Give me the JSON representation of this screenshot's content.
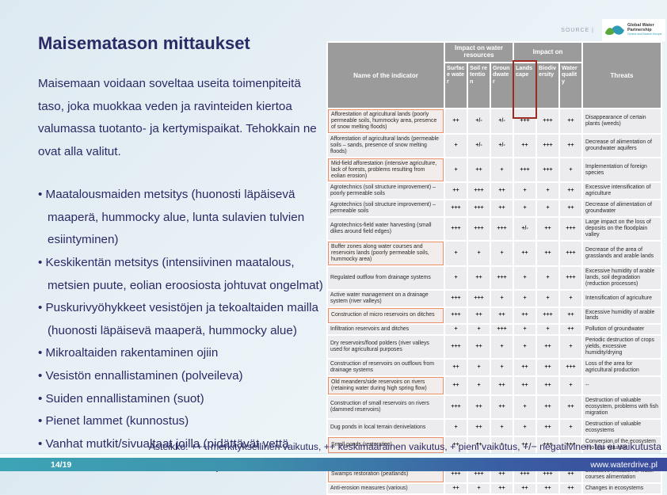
{
  "source_label": "SOURCE |",
  "logo": {
    "line1": "Global Water",
    "line2": "Partnership",
    "line3": "Central and Eastern Europe"
  },
  "title": "Maisematason mittaukset",
  "intro": "Maisemaan voidaan soveltaa useita toimenpiteitä taso, joka muokkaa veden ja ravinteiden kiertoa valumassa tuotanto- ja kertymispaikat. Tehokkain ne ovat alla valitut.",
  "bullets": [
    "Maatalousmaiden metsitys (huonosti läpäisevä maaperä, hummocky alue, lunta sulavien tulvien esiintyminen)",
    "Keskikentän metsitys (intensiivinen maatalous, metsien puute, eolian eroosiosta johtuvat ongelmat)",
    "Puskurivyöhykkeet vesistöjen ja tekoaltaiden mailla (huonosti läpäisevä maaperä, hummocky alue)",
    "Mikroaltaiden rakentaminen ojiin",
    "Vesistön ennallistaminen (polveileva)",
    "Suiden ennallistaminen (suot)",
    "Pienet lammet (kunnostus)",
    "Vanhat mutkit/sivualtaat joilla (pidättävät vettä korkean kevätvirtauksen aikana)"
  ],
  "table": {
    "header": {
      "name_col": "Name of the indicator",
      "group1": "Impact on water resources",
      "group2": "Impact on",
      "subcols": [
        "Surface water",
        "Soil retention",
        "Groundwater",
        "Landscape",
        "Biodiversity",
        "Water quality"
      ],
      "threats_col": "Threats"
    },
    "rows": [
      {
        "name": "Afforestation of agricultural lands (poorly permeable soils, hummocky area, presence of snow melting floods)",
        "highlight": true,
        "values": [
          "++",
          "+/-",
          "+/-",
          "+++",
          "+++",
          "++"
        ],
        "threat": "Disappearance of certain plants (weeds)"
      },
      {
        "name": "Afforestation of agricultural lands (permeable soils – sands, presence of snow melting floods)",
        "highlight": false,
        "values": [
          "+",
          "+/-",
          "+/-",
          "++",
          "+++",
          "++"
        ],
        "threat": "Decrease of alimentation of groundwater aquifers"
      },
      {
        "name": "Mid-field afforestation (intensive agriculture, lack of forests, problems resulting from eolian erosion)",
        "highlight": true,
        "values": [
          "+",
          "++",
          "+",
          "+++",
          "+++",
          "+"
        ],
        "threat": "Implementation of foreign species"
      },
      {
        "name": "Agrotechnics (soil structure improvement) – poorly permeable soils",
        "highlight": false,
        "values": [
          "++",
          "+++",
          "++",
          "+",
          "+",
          "++"
        ],
        "threat": "Excessive intensification of agriculture"
      },
      {
        "name": "Agrotechnics (soil structure improvement) – permeable soils",
        "highlight": false,
        "values": [
          "+++",
          "+++",
          "++",
          "+",
          "+",
          "++"
        ],
        "threat": "Decrease of alimentation of groundwater"
      },
      {
        "name": "Agrotechnics-field water harvesting (small dikes around field edges)",
        "highlight": false,
        "values": [
          "+++",
          "+++",
          "+++",
          "+/-",
          "++",
          "+++"
        ],
        "threat": "Large impact on the loss of deposits on the floodplain valley"
      },
      {
        "name": "Buffer zones along water courses and reservoirs lands (poorly permeable soils, hummocky area)",
        "highlight": true,
        "values": [
          "+",
          "+",
          "+",
          "++",
          "++",
          "+++"
        ],
        "threat": "Decrease of the area of grasslands and arable lands"
      },
      {
        "name": "Regulated outflow from drainage systems",
        "highlight": false,
        "values": [
          "+",
          "++",
          "+++",
          "+",
          "+",
          "+++"
        ],
        "threat": "Excessive humidity of arable lands, soil degradation (reduction processes)"
      },
      {
        "name": "Active water management on a drainage system (river valleys)",
        "highlight": false,
        "values": [
          "+++",
          "+++",
          "+",
          "+",
          "+",
          "+"
        ],
        "threat": "Intensification of agriculture"
      },
      {
        "name": "Construction of micro reservoirs on ditches",
        "highlight": true,
        "values": [
          "+++",
          "++",
          "++",
          "++",
          "+++",
          "++"
        ],
        "threat": "Excessive humidity of arable lands"
      },
      {
        "name": "Infiltration reservoirs and ditches",
        "highlight": false,
        "values": [
          "+",
          "+",
          "+++",
          "+",
          "+",
          "++"
        ],
        "threat": "Pollution of groundwater"
      },
      {
        "name": "Dry reservoirs/flood polders (river valleys used for agricultural purposes",
        "highlight": false,
        "values": [
          "+++",
          "++",
          "+",
          "+",
          "++",
          "+"
        ],
        "threat": "Periodic destruction of crops yields, excessive humidity/drying"
      },
      {
        "name": "Construction of reservoirs on outflows from drainage systems",
        "highlight": false,
        "values": [
          "++",
          "+",
          "+",
          "++",
          "++",
          "+++"
        ],
        "threat": "Loss of the area for agricultural production"
      },
      {
        "name": "Old meanders/side reservoirs on rivers (retaining water during high spring flow)",
        "highlight": true,
        "values": [
          "++",
          "+",
          "++",
          "++",
          "++",
          "+"
        ],
        "threat": "--"
      },
      {
        "name": "Construction of small reservoirs on rivers (dammed reservoirs)",
        "highlight": false,
        "values": [
          "+++",
          "++",
          "++",
          "+",
          "++",
          "++"
        ],
        "threat": "Destruction of valuable ecosystem, problems with fish migration"
      },
      {
        "name": "Dug ponds in local terrain denivelations",
        "highlight": false,
        "values": [
          "+",
          "++",
          "+",
          "+",
          "++",
          "+"
        ],
        "threat": "Destruction of valuable ecosystems"
      },
      {
        "name": "Small ponds (restoration)",
        "highlight": true,
        "values": [
          "++",
          "++",
          "+",
          "++",
          "+++",
          "+++"
        ],
        "threat": "Conversion of the ecosystem into less valuable"
      },
      {
        "name": "Water course restoration (meandering)",
        "highlight": true,
        "values": [
          "+++",
          "++",
          "+",
          "+++",
          "+++",
          "++"
        ],
        "threat": "Flooding of agricultural lands"
      },
      {
        "name": "Swamps restoration (peatlands)",
        "highlight": true,
        "values": [
          "+++",
          "+++",
          "++",
          "+++",
          "+++",
          "++"
        ],
        "threat": "Excessive limitation of water courses alimentation"
      },
      {
        "name": "Anti-erosion measures (various)",
        "highlight": false,
        "values": [
          "++",
          "+",
          "++",
          "++",
          "++",
          "++"
        ],
        "threat": "Changes in ecosystems"
      }
    ]
  },
  "caption": "Asteikko: +++ merkityksellinen vaikutus, ++ keskimääräinen vaikutus, + pieni vaikutus, +/− negatiivinen tai ei vaikutusta",
  "footer": {
    "page": "14/19",
    "url": "www.waterdrive.pl"
  },
  "colors": {
    "navy": "#2b2a66",
    "table_header_gray": "#9b9b9b",
    "cell_bg": "#ececee",
    "highlight_border": "#e8906c",
    "landscape_box_red": "#9c2b21",
    "footer_teal": "#3da4b6",
    "footer_blue": "#3a4a9d"
  }
}
